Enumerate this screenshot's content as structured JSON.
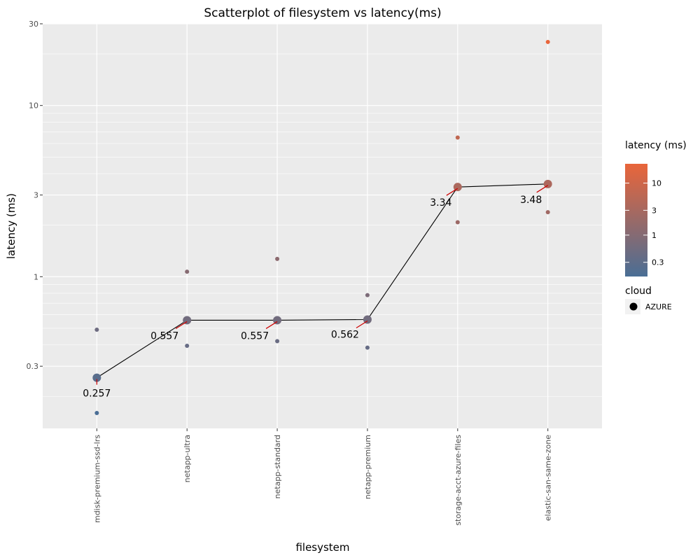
{
  "chart_data": {
    "type": "scatter",
    "title": "Scatterplot of filesystem vs latency(ms)",
    "xlabel": "filesystem",
    "ylabel": "latency (ms)",
    "y_scale": "log",
    "ylim": [
      0.13,
      30
    ],
    "y_ticks": [
      0.3,
      1,
      3,
      10,
      30
    ],
    "y_tick_labels": [
      "0.3",
      "1",
      "3",
      "10",
      "30"
    ],
    "categories": [
      "mdisk-premium-ssd-lrs",
      "netapp-ultra",
      "netapp-standard",
      "netapp-premium",
      "storage-acct-azure-files",
      "elastic-san-same-zone"
    ],
    "median_series": {
      "name": "median",
      "values": [
        0.257,
        0.557,
        0.557,
        0.562,
        3.34,
        3.48
      ],
      "labels": [
        "0.257",
        "0.557",
        "0.557",
        "0.562",
        "3.34",
        "3.48"
      ]
    },
    "points": [
      {
        "category": "mdisk-premium-ssd-lrs",
        "value": 0.49
      },
      {
        "category": "mdisk-premium-ssd-lrs",
        "value": 0.16
      },
      {
        "category": "netapp-ultra",
        "value": 1.07
      },
      {
        "category": "netapp-ultra",
        "value": 0.395
      },
      {
        "category": "netapp-standard",
        "value": 1.27
      },
      {
        "category": "netapp-standard",
        "value": 0.42
      },
      {
        "category": "netapp-premium",
        "value": 0.78
      },
      {
        "category": "netapp-premium",
        "value": 0.385
      },
      {
        "category": "storage-acct-azure-files",
        "value": 6.5
      },
      {
        "category": "storage-acct-azure-files",
        "value": 2.08
      },
      {
        "category": "elastic-san-same-zone",
        "value": 23.5
      },
      {
        "category": "elastic-san-same-zone",
        "value": 2.38
      }
    ],
    "grid": true,
    "legend": {
      "color_title": "latency (ms)",
      "color_ticks": [
        10,
        3,
        1,
        0.3
      ],
      "color_tick_labels": [
        "10",
        "3",
        "1",
        "0.3"
      ],
      "color_low": "#4a6e95",
      "color_high": "#e9653a",
      "shape_title": "cloud",
      "shape_entries": [
        "AZURE"
      ],
      "placement": "right"
    },
    "colors": {
      "panel_bg": "#ebebeb",
      "grid": "#ffffff",
      "median_line": "#000000",
      "label_connector": "#cc0000"
    }
  }
}
